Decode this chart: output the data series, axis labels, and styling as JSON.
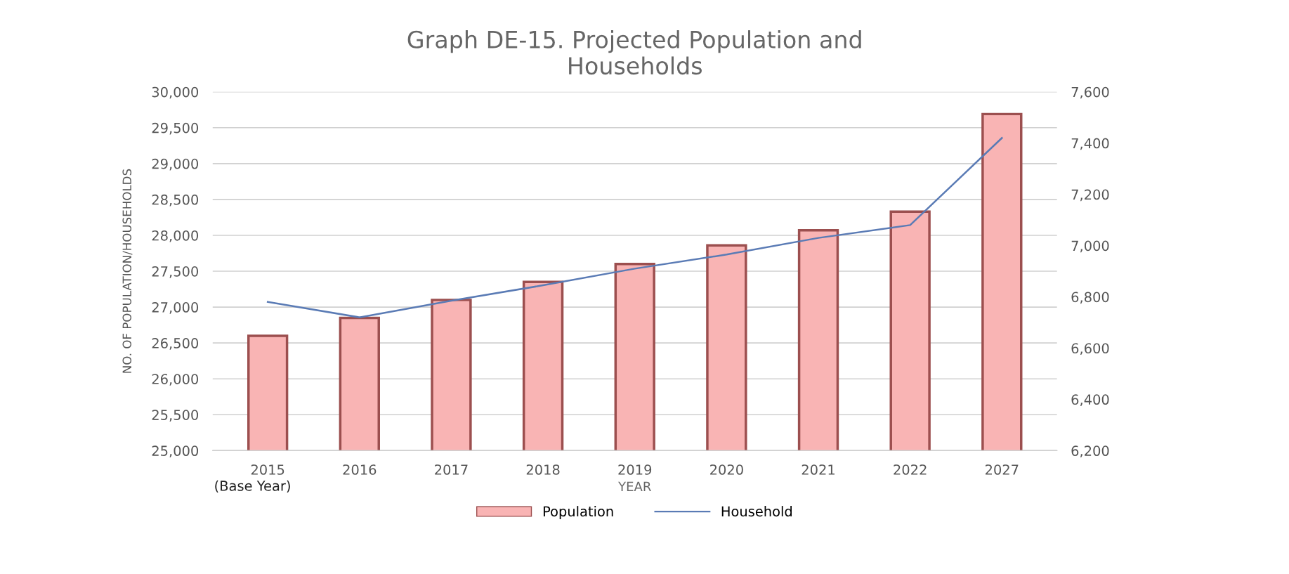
{
  "chart_data": {
    "type": "bar",
    "title": "Graph DE-15. Projected Population and\nHouseholds",
    "categories": [
      "2015",
      "2016",
      "2017",
      "2018",
      "2019",
      "2020",
      "2021",
      "2022",
      "2027"
    ],
    "xlabel": "YEAR",
    "ylabel": "NO. OF POPULATION/HOUSEHOLDS",
    "series": [
      {
        "name": "Population",
        "color": "#f9b4b4",
        "values": [
          26600,
          26850,
          27100,
          27350,
          27600,
          27860,
          28070,
          28330,
          29690
        ]
      },
      {
        "name": "Household",
        "type": "line",
        "axis": "y2",
        "color": "#5a7bb5",
        "values": [
          6780,
          6720,
          6785,
          6845,
          6910,
          6965,
          7030,
          7080,
          7420
        ]
      }
    ],
    "ylim": [
      25000,
      30000
    ],
    "yticks": [
      {
        "value": 25000,
        "label": "25,000"
      },
      {
        "value": 25500,
        "label": "25,500"
      },
      {
        "value": 26000,
        "label": "26,000"
      },
      {
        "value": 26500,
        "label": "26,500"
      },
      {
        "value": 27000,
        "label": "27,000"
      },
      {
        "value": 27500,
        "label": "27,500"
      },
      {
        "value": 28000,
        "label": "28,000"
      },
      {
        "value": 28500,
        "label": "28,500"
      },
      {
        "value": 29000,
        "label": "29,000"
      },
      {
        "value": 29500,
        "label": "29,500"
      },
      {
        "value": 30000,
        "label": "30,000"
      }
    ],
    "y2lim": [
      6200,
      7600
    ],
    "y2ticks": [
      {
        "value": 6200,
        "label": "6,200"
      },
      {
        "value": 6400,
        "label": "6,400"
      },
      {
        "value": 6600,
        "label": "6,600"
      },
      {
        "value": 6800,
        "label": "6,800"
      },
      {
        "value": 7000,
        "label": "7,000"
      },
      {
        "value": 7200,
        "label": "7,200"
      },
      {
        "value": 7400,
        "label": "7,400"
      },
      {
        "value": 7600,
        "label": "7,600"
      }
    ],
    "annotations": [
      "(Base Year)"
    ],
    "grid": "y",
    "legend": "bottom",
    "marker": "none",
    "line_style": "solid"
  }
}
